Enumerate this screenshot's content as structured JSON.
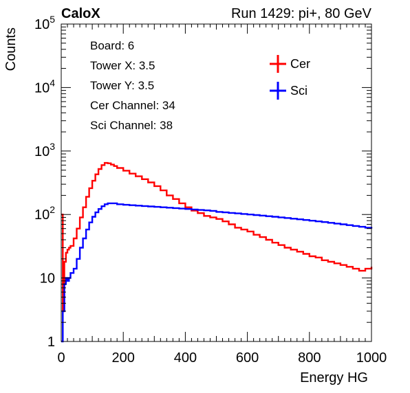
{
  "header": {
    "left_title": "CaloX",
    "right_title": "Run 1429: pi+, 80 GeV"
  },
  "info_box": {
    "lines": [
      "Board: 6",
      "Tower X: 3.5",
      "Tower Y: 3.5",
      "Cer Channel: 34",
      "Sci Channel: 38"
    ]
  },
  "chart_data": {
    "type": "line",
    "xlabel": "Energy HG",
    "ylabel": "Counts",
    "xlim": [
      0,
      1000
    ],
    "ylim": [
      1,
      100000
    ],
    "yscale": "log",
    "grid": false,
    "legend_position": "top-right",
    "x_ticks": [
      "0",
      "200",
      "400",
      "600",
      "800",
      "1000"
    ],
    "y_ticks": [
      {
        "base": "1",
        "exp": ""
      },
      {
        "base": "10",
        "exp": ""
      },
      {
        "base": "10",
        "exp": "2"
      },
      {
        "base": "10",
        "exp": "3"
      },
      {
        "base": "10",
        "exp": "4"
      },
      {
        "base": "10",
        "exp": "5"
      }
    ],
    "series": [
      {
        "name": "Cer",
        "color": "#ff0000",
        "x": [
          0,
          5,
          10,
          15,
          20,
          25,
          30,
          40,
          50,
          60,
          70,
          80,
          90,
          100,
          110,
          120,
          130,
          140,
          150,
          160,
          170,
          180,
          200,
          220,
          240,
          260,
          280,
          300,
          320,
          340,
          360,
          380,
          400,
          420,
          440,
          460,
          480,
          500,
          520,
          540,
          560,
          580,
          600,
          620,
          640,
          660,
          680,
          700,
          720,
          740,
          760,
          780,
          800,
          820,
          840,
          860,
          880,
          900,
          920,
          940,
          960,
          980,
          1000
        ],
        "y": [
          100,
          3,
          18,
          25,
          28,
          30,
          32,
          42,
          60,
          90,
          130,
          190,
          260,
          340,
          430,
          520,
          600,
          650,
          640,
          610,
          580,
          540,
          490,
          440,
          400,
          360,
          320,
          280,
          240,
          200,
          175,
          150,
          130,
          115,
          105,
          95,
          90,
          85,
          78,
          70,
          62,
          58,
          54,
          48,
          44,
          40,
          36,
          33,
          30,
          28,
          26,
          24,
          22,
          21,
          19,
          18,
          17,
          16,
          15,
          14,
          13,
          14,
          15
        ]
      },
      {
        "name": "Sci",
        "color": "#0000ff",
        "x": [
          0,
          5,
          10,
          15,
          20,
          25,
          30,
          40,
          50,
          60,
          70,
          80,
          90,
          100,
          110,
          120,
          130,
          140,
          150,
          160,
          180,
          200,
          220,
          240,
          260,
          280,
          300,
          320,
          340,
          360,
          380,
          400,
          420,
          440,
          460,
          480,
          500,
          520,
          540,
          560,
          580,
          600,
          620,
          640,
          660,
          680,
          700,
          720,
          740,
          760,
          780,
          800,
          820,
          840,
          860,
          880,
          900,
          920,
          940,
          960,
          980,
          1000
        ],
        "y": [
          1,
          3,
          8,
          10,
          9,
          10,
          12,
          14,
          20,
          30,
          42,
          58,
          75,
          92,
          108,
          122,
          135,
          145,
          150,
          150,
          145,
          142,
          140,
          138,
          136,
          134,
          132,
          130,
          128,
          126,
          124,
          122,
          120,
          118,
          116,
          114,
          110,
          108,
          106,
          104,
          102,
          100,
          98,
          96,
          94,
          92,
          90,
          88,
          86,
          84,
          82,
          80,
          78,
          76,
          74,
          72,
          70,
          68,
          66,
          64,
          62,
          60
        ]
      }
    ]
  }
}
